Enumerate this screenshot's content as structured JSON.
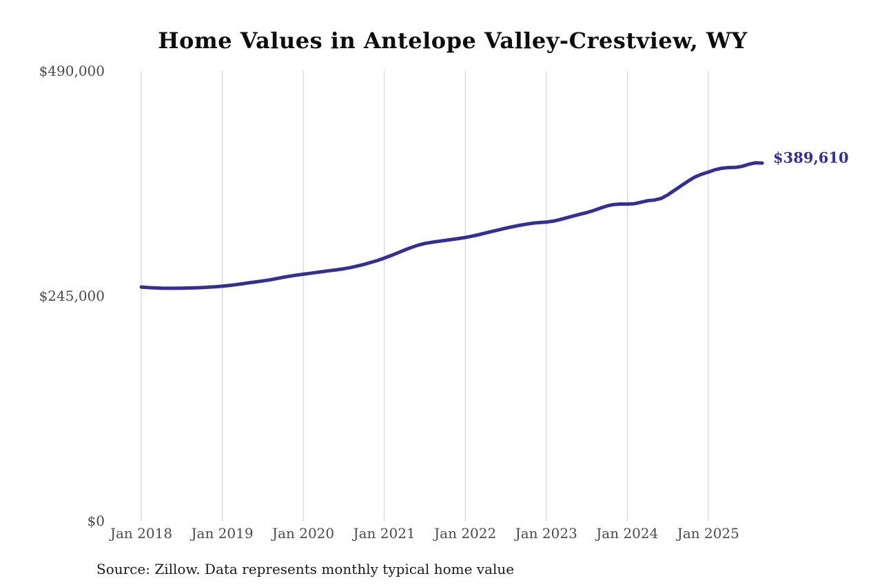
{
  "colors": {
    "line": "#332f96",
    "grid": "#cccccc",
    "axis_text": "#4a4a4a",
    "title": "#0d0d0d"
  },
  "chart_data": {
    "type": "line",
    "title": "Home Values in Antelope Valley-Crestview, WY",
    "end_label": "$389,610",
    "end_value": 389610,
    "source": "Source: Zillow. Data represents monthly typical home value",
    "ylim": [
      0,
      490000
    ],
    "grid": "vertical-only",
    "legend": "none",
    "y_ticks": [
      {
        "label": "$0",
        "value": 0
      },
      {
        "label": "$245,000",
        "value": 245000
      },
      {
        "label": "$490,000",
        "value": 490000
      }
    ],
    "x_ticks": [
      "Jan 2018",
      "Jan 2019",
      "Jan 2020",
      "Jan 2021",
      "Jan 2022",
      "Jan 2023",
      "Jan 2024",
      "Jan 2025"
    ],
    "months": [
      "2018-01",
      "2018-02",
      "2018-03",
      "2018-04",
      "2018-05",
      "2018-06",
      "2018-07",
      "2018-08",
      "2018-09",
      "2018-10",
      "2018-11",
      "2018-12",
      "2019-01",
      "2019-02",
      "2019-03",
      "2019-04",
      "2019-05",
      "2019-06",
      "2019-07",
      "2019-08",
      "2019-09",
      "2019-10",
      "2019-11",
      "2019-12",
      "2020-01",
      "2020-02",
      "2020-03",
      "2020-04",
      "2020-05",
      "2020-06",
      "2020-07",
      "2020-08",
      "2020-09",
      "2020-10",
      "2020-11",
      "2020-12",
      "2021-01",
      "2021-02",
      "2021-03",
      "2021-04",
      "2021-05",
      "2021-06",
      "2021-07",
      "2021-08",
      "2021-09",
      "2021-10",
      "2021-11",
      "2021-12",
      "2022-01",
      "2022-02",
      "2022-03",
      "2022-04",
      "2022-05",
      "2022-06",
      "2022-07",
      "2022-08",
      "2022-09",
      "2022-10",
      "2022-11",
      "2022-12",
      "2023-01",
      "2023-02",
      "2023-03",
      "2023-04",
      "2023-05",
      "2023-06",
      "2023-07",
      "2023-08",
      "2023-09",
      "2023-10",
      "2023-11",
      "2023-12",
      "2024-01",
      "2024-02",
      "2024-03",
      "2024-04",
      "2024-05",
      "2024-06",
      "2024-07",
      "2024-08",
      "2024-09",
      "2024-10",
      "2024-11",
      "2024-12",
      "2025-01",
      "2025-02",
      "2025-03",
      "2025-04",
      "2025-05",
      "2025-06",
      "2025-07",
      "2025-08",
      "2025-09"
    ],
    "values": [
      254700,
      254100,
      253700,
      253400,
      253300,
      253300,
      253400,
      253600,
      253800,
      254100,
      254500,
      255000,
      255600,
      256300,
      257200,
      258200,
      259300,
      260300,
      261300,
      262400,
      263800,
      265200,
      266500,
      267600,
      268600,
      269600,
      270600,
      271600,
      272600,
      273500,
      274500,
      275900,
      277500,
      279300,
      281400,
      283600,
      286100,
      288900,
      291900,
      294900,
      297700,
      300200,
      302100,
      303400,
      304400,
      305400,
      306400,
      307500,
      308600,
      310000,
      311700,
      313500,
      315300,
      317000,
      318700,
      320300,
      321800,
      323100,
      324200,
      324900,
      325400,
      326400,
      328000,
      330000,
      332000,
      333900,
      335700,
      337900,
      340500,
      343000,
      344500,
      345000,
      345000,
      345300,
      347000,
      348600,
      349400,
      351100,
      355000,
      360000,
      365000,
      369900,
      374400,
      377500,
      379800,
      382300,
      384000,
      384700,
      384900,
      386000,
      388300,
      389900,
      389610
    ]
  }
}
